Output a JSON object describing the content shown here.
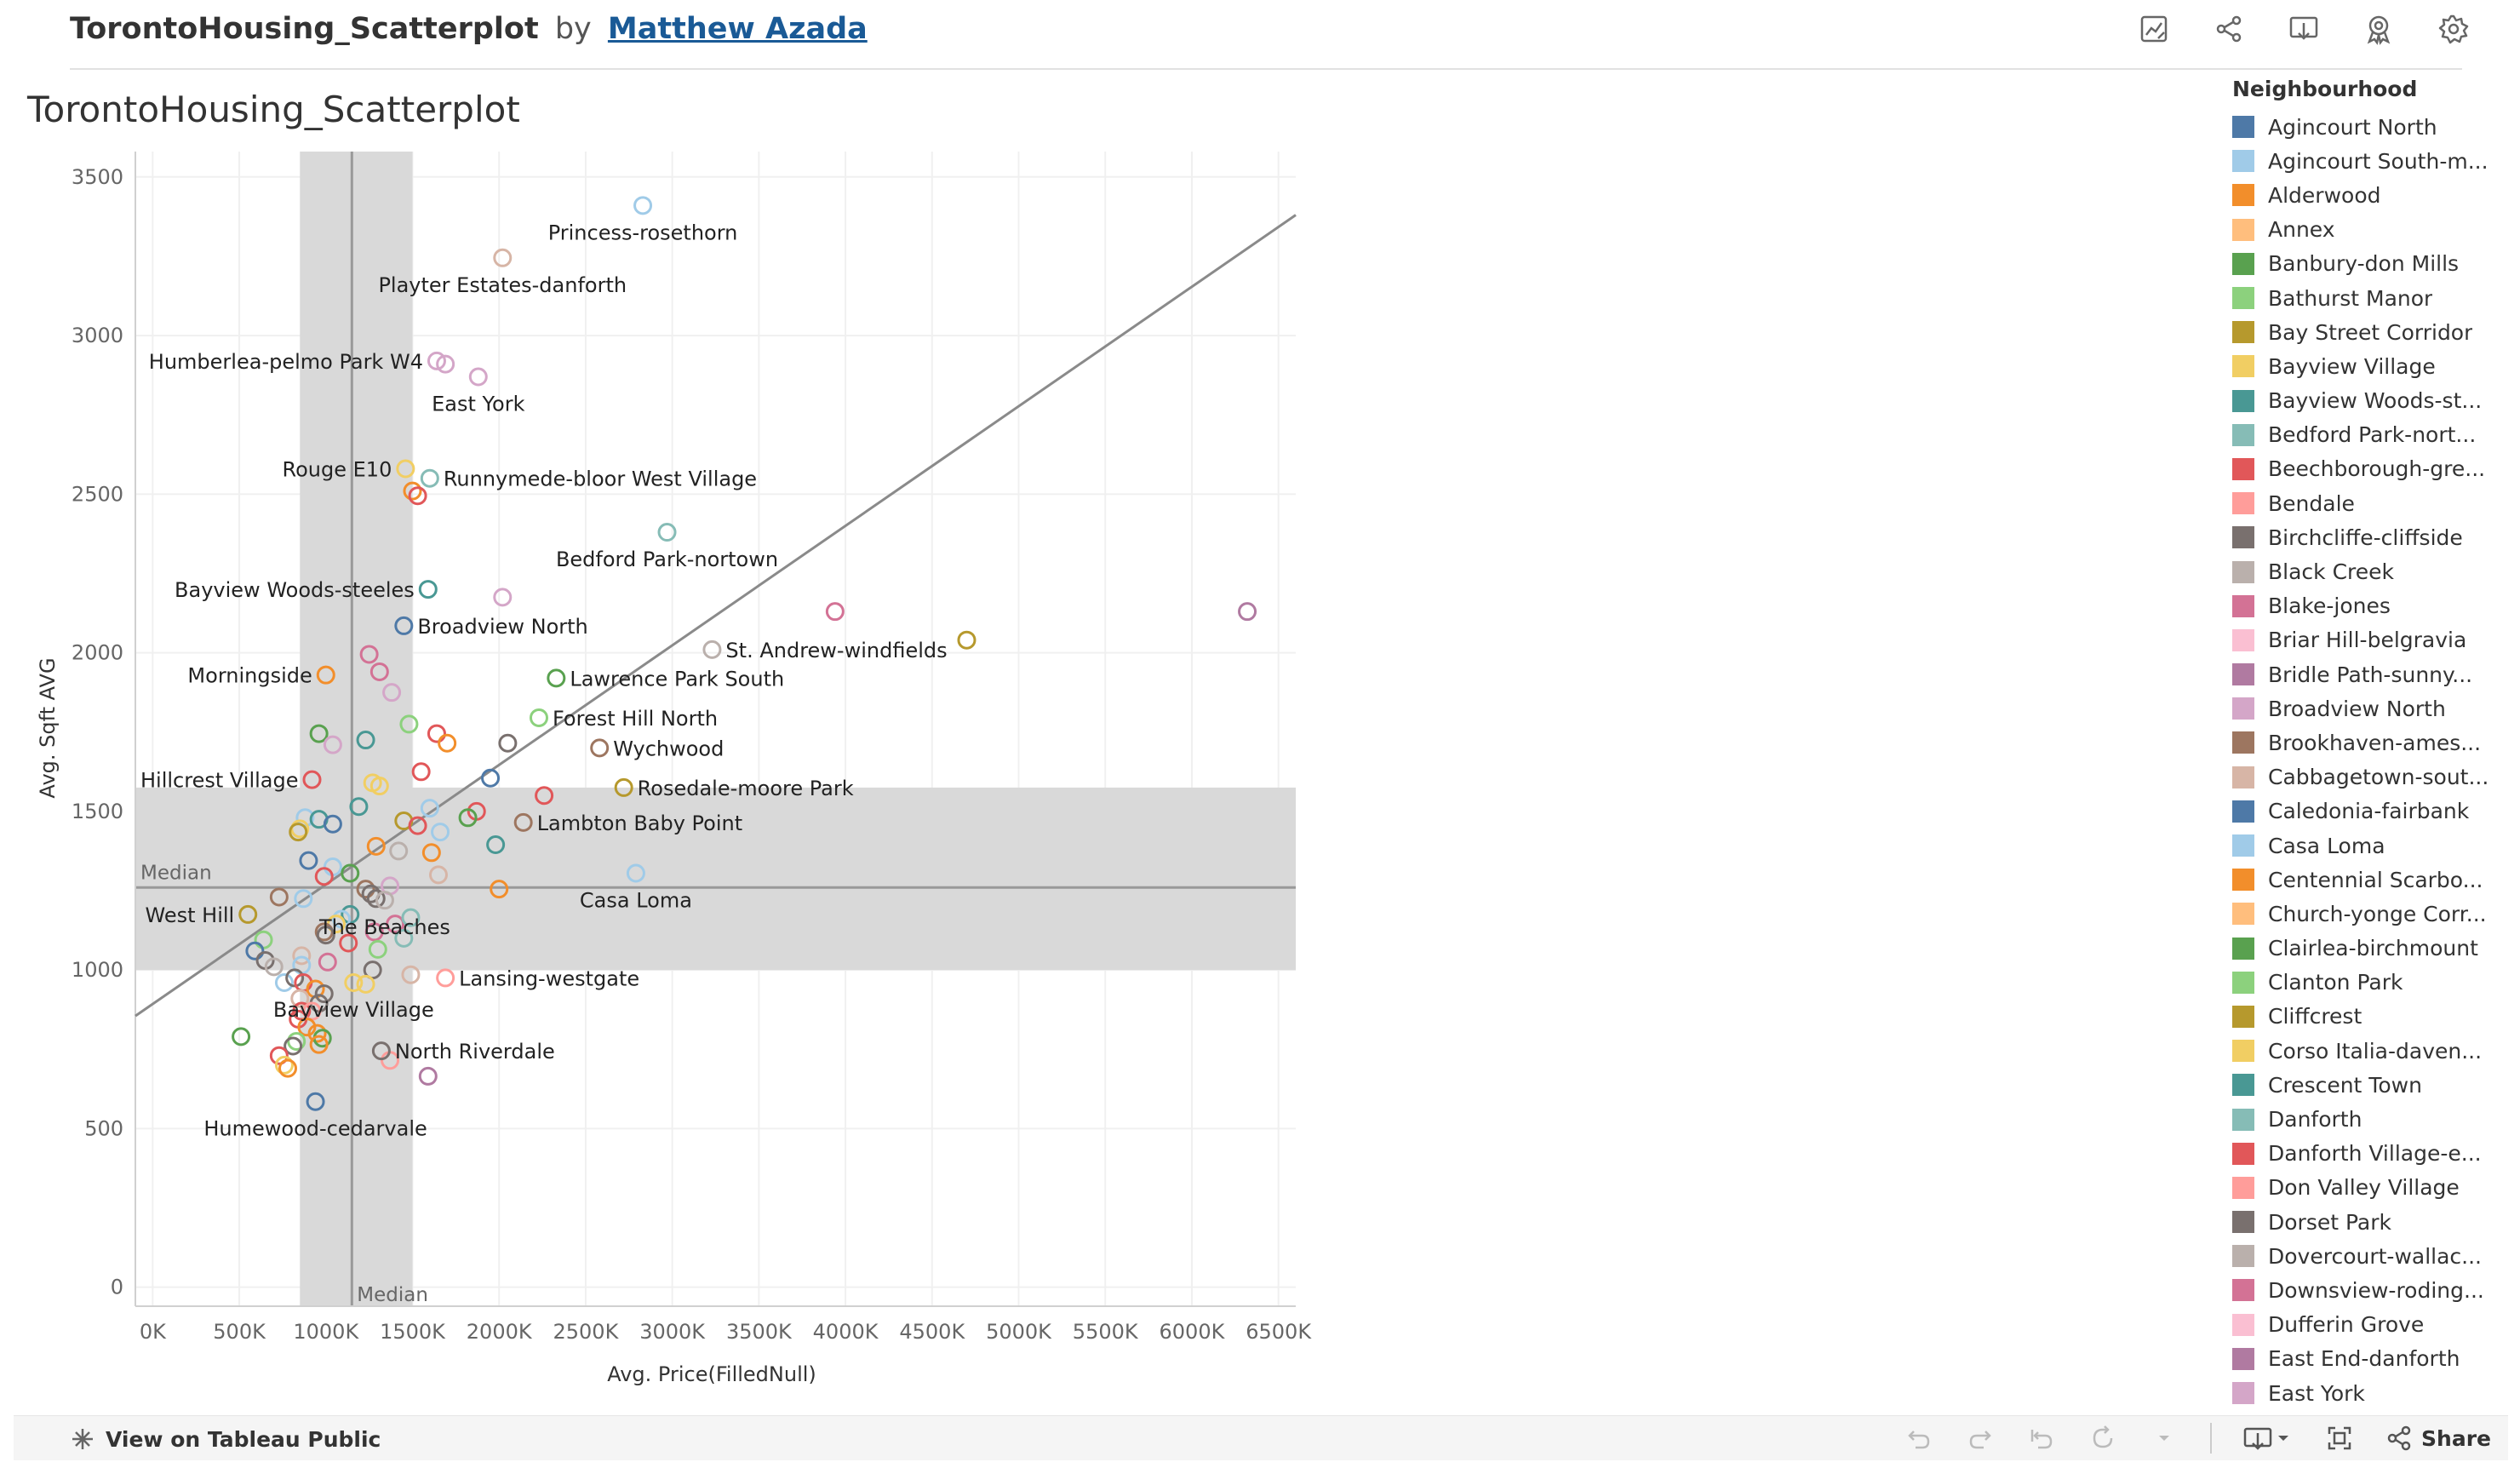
{
  "header": {
    "title": "TorontoHousing_Scatterplot",
    "by": "by",
    "author": "Matthew Azada",
    "icons": [
      "data-guide-icon",
      "share-network-icon",
      "download-icon",
      "favorite-icon",
      "settings-gear-icon"
    ]
  },
  "sheet_title": "TorontoHousing_Scatterplot",
  "chart_data": {
    "type": "scatter",
    "title": "TorontoHousing_Scatterplot",
    "xlabel": "Avg. Price(FilledNull)",
    "ylabel": "Avg. Sqft AVG",
    "xlim": [
      -100,
      6600
    ],
    "ylim": [
      -60,
      3580
    ],
    "xticks": [
      0,
      500,
      1000,
      1500,
      2000,
      2500,
      3000,
      3500,
      4000,
      4500,
      5000,
      5500,
      6000,
      6500
    ],
    "xtick_labels": [
      "0K",
      "500K",
      "1000K",
      "1500K",
      "2000K",
      "2500K",
      "3000K",
      "3500K",
      "4000K",
      "4500K",
      "5000K",
      "5500K",
      "6000K",
      "6500K"
    ],
    "yticks": [
      0,
      500,
      1000,
      1500,
      2000,
      2500,
      3000,
      3500
    ],
    "ytick_labels": [
      "0",
      "500",
      "1000",
      "1500",
      "2000",
      "2500",
      "3000",
      "3500"
    ],
    "grid": true,
    "median_x": 1150,
    "median_y": 1260,
    "band_x": [
      850,
      1500
    ],
    "band_y": [
      1000,
      1575
    ],
    "median_x_label": "Median",
    "median_y_label": "Median",
    "trend_line": {
      "x0": -100,
      "y0": 855,
      "x1": 6600,
      "y1": 3380
    },
    "marker": "hollow-circle",
    "labeled_points": [
      {
        "name": "Princess-rosethorn",
        "x": 2830,
        "y": 3410,
        "color": "#a0cbe8"
      },
      {
        "name": "Playter Estates-danforth",
        "x": 2020,
        "y": 3245,
        "color": "#d7b5a6"
      },
      {
        "name": "Humberlea-pelmo Park W4",
        "x": 1640,
        "y": 2920,
        "color": "#d4a6c8"
      },
      {
        "name": "East York",
        "x": 1880,
        "y": 2870,
        "color": "#d4a6c8"
      },
      {
        "name": "Rouge E10",
        "x": 1460,
        "y": 2580,
        "color": "#f1ce63"
      },
      {
        "name": "Runnymede-bloor West Village",
        "x": 1600,
        "y": 2550,
        "color": "#86bcb6"
      },
      {
        "name": "Bedford Park-nortown",
        "x": 2970,
        "y": 2380,
        "color": "#86bcb6"
      },
      {
        "name": "Bayview Woods-steeles",
        "x": 1590,
        "y": 2200,
        "color": "#499894"
      },
      {
        "name": "Broadview North",
        "x": 1450,
        "y": 2085,
        "color": "#4e79a7"
      },
      {
        "name": "St. Andrew-windfields",
        "x": 3230,
        "y": 2010,
        "color": "#bab0ac"
      },
      {
        "name": "Morningside",
        "x": 1000,
        "y": 1930,
        "color": "#f28e2b"
      },
      {
        "name": "Lawrence Park South",
        "x": 2330,
        "y": 1920,
        "color": "#59a14f"
      },
      {
        "name": "Forest Hill North",
        "x": 2230,
        "y": 1795,
        "color": "#8cd17d"
      },
      {
        "name": "Wychwood",
        "x": 2580,
        "y": 1700,
        "color": "#9d7660"
      },
      {
        "name": "Hillcrest Village",
        "x": 920,
        "y": 1600,
        "color": "#e15759"
      },
      {
        "name": "Rosedale-moore Park",
        "x": 2720,
        "y": 1575,
        "color": "#b6992d"
      },
      {
        "name": "Lambton Baby Point",
        "x": 2140,
        "y": 1465,
        "color": "#9d7660"
      },
      {
        "name": "Casa Loma",
        "x": 2790,
        "y": 1305,
        "color": "#a0cbe8"
      },
      {
        "name": "The Beaches",
        "x": 1340,
        "y": 1220,
        "color": "#bab0ac"
      },
      {
        "name": "West Hill",
        "x": 550,
        "y": 1175,
        "color": "#b6992d"
      },
      {
        "name": "Lansing-westgate",
        "x": 1690,
        "y": 975,
        "color": "#ff9d9a"
      },
      {
        "name": "Bayview Village",
        "x": 1160,
        "y": 960,
        "color": "#f1ce63"
      },
      {
        "name": "North Riverdale",
        "x": 1320,
        "y": 745,
        "color": "#79706e"
      },
      {
        "name": "Humewood-cedarvale",
        "x": 940,
        "y": 585,
        "color": "#4e79a7"
      }
    ],
    "points": [
      {
        "x": 3940,
        "y": 2130,
        "color": "#d37295"
      },
      {
        "x": 4700,
        "y": 2040,
        "color": "#b6992d"
      },
      {
        "x": 6320,
        "y": 2130,
        "color": "#b07aa1"
      },
      {
        "x": 2020,
        "y": 2175,
        "color": "#d4a6c8"
      },
      {
        "x": 1500,
        "y": 2510,
        "color": "#f28e2b"
      },
      {
        "x": 1530,
        "y": 2495,
        "color": "#e15759"
      },
      {
        "x": 1690,
        "y": 2910,
        "color": "#d4a6c8"
      },
      {
        "x": 1250,
        "y": 1995,
        "color": "#d37295"
      },
      {
        "x": 1310,
        "y": 1940,
        "color": "#d37295"
      },
      {
        "x": 1380,
        "y": 1875,
        "color": "#d4a6c8"
      },
      {
        "x": 960,
        "y": 1745,
        "color": "#59a14f"
      },
      {
        "x": 1040,
        "y": 1710,
        "color": "#d4a6c8"
      },
      {
        "x": 1230,
        "y": 1725,
        "color": "#499894"
      },
      {
        "x": 1480,
        "y": 1775,
        "color": "#8cd17d"
      },
      {
        "x": 1640,
        "y": 1745,
        "color": "#e15759"
      },
      {
        "x": 1700,
        "y": 1715,
        "color": "#f28e2b"
      },
      {
        "x": 2050,
        "y": 1715,
        "color": "#79706e"
      },
      {
        "x": 1550,
        "y": 1625,
        "color": "#e15759"
      },
      {
        "x": 1950,
        "y": 1605,
        "color": "#4e79a7"
      },
      {
        "x": 1270,
        "y": 1590,
        "color": "#f1ce63"
      },
      {
        "x": 1310,
        "y": 1580,
        "color": "#f1ce63"
      },
      {
        "x": 2260,
        "y": 1550,
        "color": "#e15759"
      },
      {
        "x": 1190,
        "y": 1515,
        "color": "#499894"
      },
      {
        "x": 1600,
        "y": 1510,
        "color": "#a0cbe8"
      },
      {
        "x": 1870,
        "y": 1500,
        "color": "#e15759"
      },
      {
        "x": 1820,
        "y": 1480,
        "color": "#59a14f"
      },
      {
        "x": 880,
        "y": 1480,
        "color": "#a0cbe8"
      },
      {
        "x": 960,
        "y": 1475,
        "color": "#499894"
      },
      {
        "x": 1040,
        "y": 1460,
        "color": "#4e79a7"
      },
      {
        "x": 1450,
        "y": 1470,
        "color": "#b6992d"
      },
      {
        "x": 1530,
        "y": 1455,
        "color": "#e15759"
      },
      {
        "x": 850,
        "y": 1445,
        "color": "#f1ce63"
      },
      {
        "x": 840,
        "y": 1435,
        "color": "#b6992d"
      },
      {
        "x": 1660,
        "y": 1435,
        "color": "#a0cbe8"
      },
      {
        "x": 1290,
        "y": 1390,
        "color": "#f28e2b"
      },
      {
        "x": 1420,
        "y": 1375,
        "color": "#bab0ac"
      },
      {
        "x": 1610,
        "y": 1370,
        "color": "#f28e2b"
      },
      {
        "x": 1980,
        "y": 1395,
        "color": "#499894"
      },
      {
        "x": 900,
        "y": 1345,
        "color": "#4e79a7"
      },
      {
        "x": 1040,
        "y": 1325,
        "color": "#a0cbe8"
      },
      {
        "x": 1140,
        "y": 1305,
        "color": "#59a14f"
      },
      {
        "x": 990,
        "y": 1295,
        "color": "#e15759"
      },
      {
        "x": 1650,
        "y": 1300,
        "color": "#d7b5a6"
      },
      {
        "x": 1370,
        "y": 1265,
        "color": "#d4a6c8"
      },
      {
        "x": 1230,
        "y": 1255,
        "color": "#9d7660"
      },
      {
        "x": 1260,
        "y": 1240,
        "color": "#79706e"
      },
      {
        "x": 1290,
        "y": 1225,
        "color": "#79706e"
      },
      {
        "x": 2000,
        "y": 1255,
        "color": "#f28e2b"
      },
      {
        "x": 870,
        "y": 1225,
        "color": "#a0cbe8"
      },
      {
        "x": 730,
        "y": 1230,
        "color": "#9d7660"
      },
      {
        "x": 1140,
        "y": 1175,
        "color": "#499894"
      },
      {
        "x": 1090,
        "y": 1160,
        "color": "#a0cbe8"
      },
      {
        "x": 1060,
        "y": 1145,
        "color": "#f1ce63"
      },
      {
        "x": 1400,
        "y": 1145,
        "color": "#d37295"
      },
      {
        "x": 1490,
        "y": 1165,
        "color": "#86bcb6"
      },
      {
        "x": 990,
        "y": 1120,
        "color": "#9d7660"
      },
      {
        "x": 1280,
        "y": 1120,
        "color": "#d37295"
      },
      {
        "x": 1000,
        "y": 1110,
        "color": "#79706e"
      },
      {
        "x": 1130,
        "y": 1085,
        "color": "#e15759"
      },
      {
        "x": 1450,
        "y": 1100,
        "color": "#86bcb6"
      },
      {
        "x": 640,
        "y": 1095,
        "color": "#8cd17d"
      },
      {
        "x": 590,
        "y": 1060,
        "color": "#4e79a7"
      },
      {
        "x": 860,
        "y": 1045,
        "color": "#d7b5a6"
      },
      {
        "x": 1300,
        "y": 1065,
        "color": "#8cd17d"
      },
      {
        "x": 650,
        "y": 1030,
        "color": "#79706e"
      },
      {
        "x": 700,
        "y": 1010,
        "color": "#bab0ac"
      },
      {
        "x": 860,
        "y": 1015,
        "color": "#a0cbe8"
      },
      {
        "x": 1010,
        "y": 1025,
        "color": "#d37295"
      },
      {
        "x": 1270,
        "y": 1000,
        "color": "#79706e"
      },
      {
        "x": 1490,
        "y": 985,
        "color": "#d7b5a6"
      },
      {
        "x": 760,
        "y": 960,
        "color": "#a0cbe8"
      },
      {
        "x": 820,
        "y": 975,
        "color": "#79706e"
      },
      {
        "x": 870,
        "y": 960,
        "color": "#e15759"
      },
      {
        "x": 940,
        "y": 940,
        "color": "#f28e2b"
      },
      {
        "x": 1230,
        "y": 955,
        "color": "#f1ce63"
      },
      {
        "x": 850,
        "y": 910,
        "color": "#d7b5a6"
      },
      {
        "x": 990,
        "y": 925,
        "color": "#79706e"
      },
      {
        "x": 960,
        "y": 895,
        "color": "#79706e"
      },
      {
        "x": 860,
        "y": 870,
        "color": "#e15759"
      },
      {
        "x": 920,
        "y": 870,
        "color": "#ff9d9a"
      },
      {
        "x": 840,
        "y": 845,
        "color": "#e15759"
      },
      {
        "x": 890,
        "y": 820,
        "color": "#f28e2b"
      },
      {
        "x": 950,
        "y": 800,
        "color": "#f28e2b"
      },
      {
        "x": 980,
        "y": 785,
        "color": "#59a14f"
      },
      {
        "x": 830,
        "y": 775,
        "color": "#8cd17d"
      },
      {
        "x": 810,
        "y": 760,
        "color": "#79706e"
      },
      {
        "x": 960,
        "y": 765,
        "color": "#f28e2b"
      },
      {
        "x": 510,
        "y": 790,
        "color": "#59a14f"
      },
      {
        "x": 730,
        "y": 730,
        "color": "#e15759"
      },
      {
        "x": 760,
        "y": 700,
        "color": "#f1ce63"
      },
      {
        "x": 780,
        "y": 690,
        "color": "#f28e2b"
      },
      {
        "x": 1370,
        "y": 715,
        "color": "#ff9d9a"
      },
      {
        "x": 1590,
        "y": 665,
        "color": "#b07aa1"
      }
    ]
  },
  "legend": {
    "title": "Neighbourhood",
    "items": [
      {
        "label": "Agincourt North",
        "color": "#4e79a7"
      },
      {
        "label": "Agincourt South-m...",
        "color": "#a0cbe8"
      },
      {
        "label": "Alderwood",
        "color": "#f28e2b"
      },
      {
        "label": "Annex",
        "color": "#ffbe7d"
      },
      {
        "label": "Banbury-don Mills",
        "color": "#59a14f"
      },
      {
        "label": "Bathurst Manor",
        "color": "#8cd17d"
      },
      {
        "label": "Bay Street Corridor",
        "color": "#b6992d"
      },
      {
        "label": "Bayview Village",
        "color": "#f1ce63"
      },
      {
        "label": "Bayview Woods-st...",
        "color": "#499894"
      },
      {
        "label": "Bedford Park-nort...",
        "color": "#86bcb6"
      },
      {
        "label": "Beechborough-gre...",
        "color": "#e15759"
      },
      {
        "label": "Bendale",
        "color": "#ff9d9a"
      },
      {
        "label": "Birchcliffe-cliffside",
        "color": "#79706e"
      },
      {
        "label": "Black Creek",
        "color": "#bab0ac"
      },
      {
        "label": "Blake-jones",
        "color": "#d37295"
      },
      {
        "label": "Briar Hill-belgravia",
        "color": "#fabfd2"
      },
      {
        "label": "Bridle Path-sunny...",
        "color": "#b07aa1"
      },
      {
        "label": "Broadview North",
        "color": "#d4a6c8"
      },
      {
        "label": "Brookhaven-ames...",
        "color": "#9d7660"
      },
      {
        "label": "Cabbagetown-sout...",
        "color": "#d7b5a6"
      },
      {
        "label": "Caledonia-fairbank",
        "color": "#4e79a7"
      },
      {
        "label": "Casa Loma",
        "color": "#a0cbe8"
      },
      {
        "label": "Centennial Scarbo...",
        "color": "#f28e2b"
      },
      {
        "label": "Church-yonge Corr...",
        "color": "#ffbe7d"
      },
      {
        "label": "Clairlea-birchmount",
        "color": "#59a14f"
      },
      {
        "label": "Clanton Park",
        "color": "#8cd17d"
      },
      {
        "label": "Cliffcrest",
        "color": "#b6992d"
      },
      {
        "label": "Corso Italia-daven...",
        "color": "#f1ce63"
      },
      {
        "label": "Crescent Town",
        "color": "#499894"
      },
      {
        "label": "Danforth",
        "color": "#86bcb6"
      },
      {
        "label": "Danforth Village-e...",
        "color": "#e15759"
      },
      {
        "label": "Don Valley Village",
        "color": "#ff9d9a"
      },
      {
        "label": "Dorset Park",
        "color": "#79706e"
      },
      {
        "label": "Dovercourt-wallac...",
        "color": "#bab0ac"
      },
      {
        "label": "Downsview-roding...",
        "color": "#d37295"
      },
      {
        "label": "Dufferin Grove",
        "color": "#fabfd2"
      },
      {
        "label": "East End-danforth",
        "color": "#b07aa1"
      },
      {
        "label": "East York",
        "color": "#d4a6c8"
      }
    ]
  },
  "footer": {
    "view_link": "View on Tableau Public",
    "share_label": "Share",
    "icons": [
      "undo-icon",
      "redo-icon",
      "revert-icon",
      "refresh-icon",
      "pause-dropdown-icon",
      "download-dropdown-icon",
      "fullscreen-icon",
      "share-icon"
    ]
  }
}
